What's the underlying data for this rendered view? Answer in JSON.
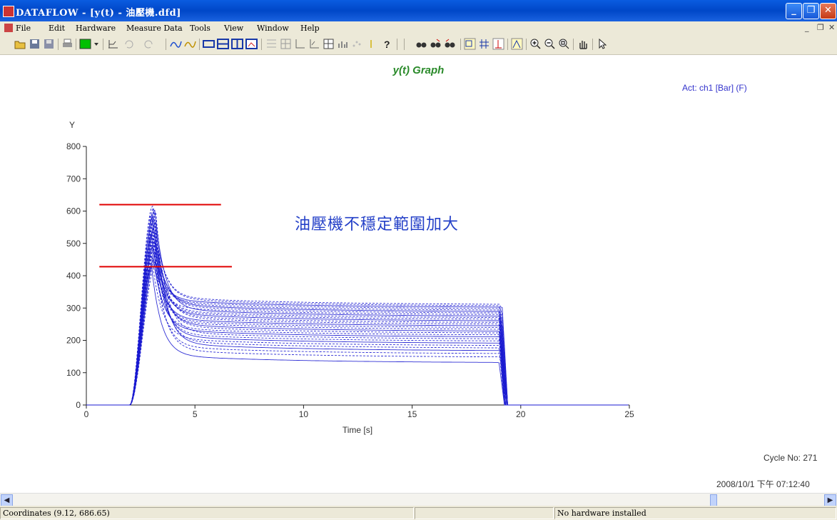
{
  "window": {
    "title": "DATAFLOW - [y(t) - 油壓機.dfd]",
    "controls": [
      "minimize",
      "restore",
      "close"
    ]
  },
  "menubar": {
    "items": [
      "File",
      "Edit",
      "Hardware",
      "Measure Data",
      "Tools",
      "View",
      "Window",
      "Help"
    ]
  },
  "toolbar": {
    "icons": [
      "open-folder-icon",
      "save-icon",
      "save-all-icon",
      "print-icon",
      "color-swatch-icon",
      "dropdown-arrow-icon",
      "measure-icon",
      "undo-icon",
      "redo-icon",
      "curve-a-icon",
      "curve-b-icon",
      "layout-1-icon",
      "layout-2-icon",
      "layout-3-icon",
      "picture-icon",
      "grid-a-icon",
      "grid-b-icon",
      "axis-a-icon",
      "axis-b-icon",
      "matrix-icon",
      "bar-icon",
      "scatter-icon",
      "marker-icon",
      "help-icon",
      "binoculars-icon",
      "find-next-icon",
      "find-prev-icon",
      "select-range-icon",
      "crosshair-icon",
      "cursor-value-icon",
      "peak-icon",
      "zoom-in-icon",
      "zoom-out-icon",
      "zoom-fit-icon",
      "hand-icon",
      "pointer-icon"
    ],
    "accent_swatch": "#00c000"
  },
  "graph": {
    "title": "y(t) Graph",
    "active_channel": "Act: ch1 [Bar] (F)",
    "annotation": "油壓機不穩定範圍加大",
    "cycle": "Cycle No: 271",
    "datetime": "2008/10/1 下午 07:12:40"
  },
  "chart_data": {
    "type": "line",
    "xlabel": "Time [s]",
    "ylabel": "Y",
    "xlim": [
      0,
      25
    ],
    "ylim": [
      0,
      800
    ],
    "x_ticks": [
      "0",
      "5",
      "10",
      "15",
      "20",
      "25"
    ],
    "y_ticks": [
      "0",
      "100",
      "200",
      "300",
      "400",
      "500",
      "600",
      "700",
      "800"
    ],
    "line_color": "#1a1ad0",
    "rise_start_s": 2.0,
    "peak_time_s": 3.0,
    "drop_time_s": 19.0,
    "plateau_range": [
      130,
      310
    ],
    "peak_range": [
      430,
      615
    ],
    "marker_lines": [
      {
        "y": 620,
        "x_start": 0.6,
        "x_end": 6.2,
        "color": "#e00000"
      },
      {
        "y": 428,
        "x_start": 0.6,
        "x_end": 6.7,
        "color": "#e00000"
      }
    ]
  },
  "status": {
    "coordinates": "Coordinates (9.12, 686.65)",
    "middle": "",
    "hardware": "No hardware installed"
  }
}
